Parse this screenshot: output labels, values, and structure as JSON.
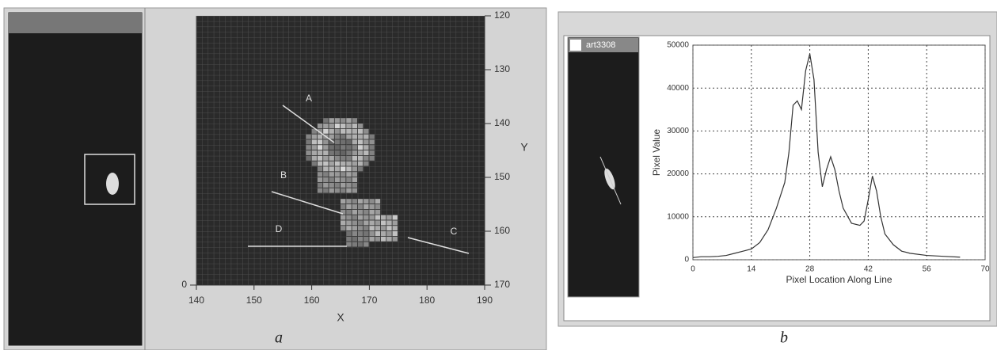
{
  "chart_data": [
    {
      "type": "image",
      "xlabel": "X",
      "ylabel": "Y",
      "xlim": [
        140,
        190
      ],
      "xticks": [
        140,
        150,
        160,
        170,
        180,
        190
      ],
      "ylim": [
        170,
        120
      ],
      "yticks": [
        120,
        130,
        140,
        150,
        160,
        170
      ],
      "yticks_left": [
        0
      ],
      "annotations": [
        "A",
        "B",
        "C",
        "D"
      ]
    },
    {
      "type": "line",
      "thumbnail_title": "art3308",
      "xlabel": "Pixel Location Along Line",
      "ylabel": "Pixel Value",
      "xlim": [
        0,
        70
      ],
      "xticks": [
        0,
        14,
        28,
        42,
        56,
        70
      ],
      "ylim": [
        0,
        50000
      ],
      "yticks": [
        0,
        10000,
        20000,
        30000,
        40000,
        50000
      ],
      "grid": true,
      "color": "#333333",
      "x": [
        0,
        2,
        4,
        6,
        8,
        10,
        12,
        14,
        16,
        18,
        20,
        22,
        23,
        24,
        25,
        26,
        27,
        28,
        29,
        30,
        31,
        32,
        33,
        34,
        35,
        36,
        38,
        40,
        41,
        42,
        43,
        44,
        45,
        46,
        48,
        50,
        52,
        56,
        60,
        64
      ],
      "values": [
        500,
        700,
        700,
        800,
        1000,
        1500,
        2000,
        2500,
        4000,
        7000,
        12000,
        18000,
        25000,
        36000,
        37000,
        35000,
        44000,
        48000,
        42000,
        25000,
        17000,
        21000,
        24000,
        21000,
        16000,
        12000,
        8500,
        8000,
        9000,
        14000,
        19500,
        16000,
        10000,
        6000,
        3500,
        2000,
        1500,
        1000,
        800,
        600
      ]
    }
  ],
  "captions": [
    "a",
    "b"
  ]
}
